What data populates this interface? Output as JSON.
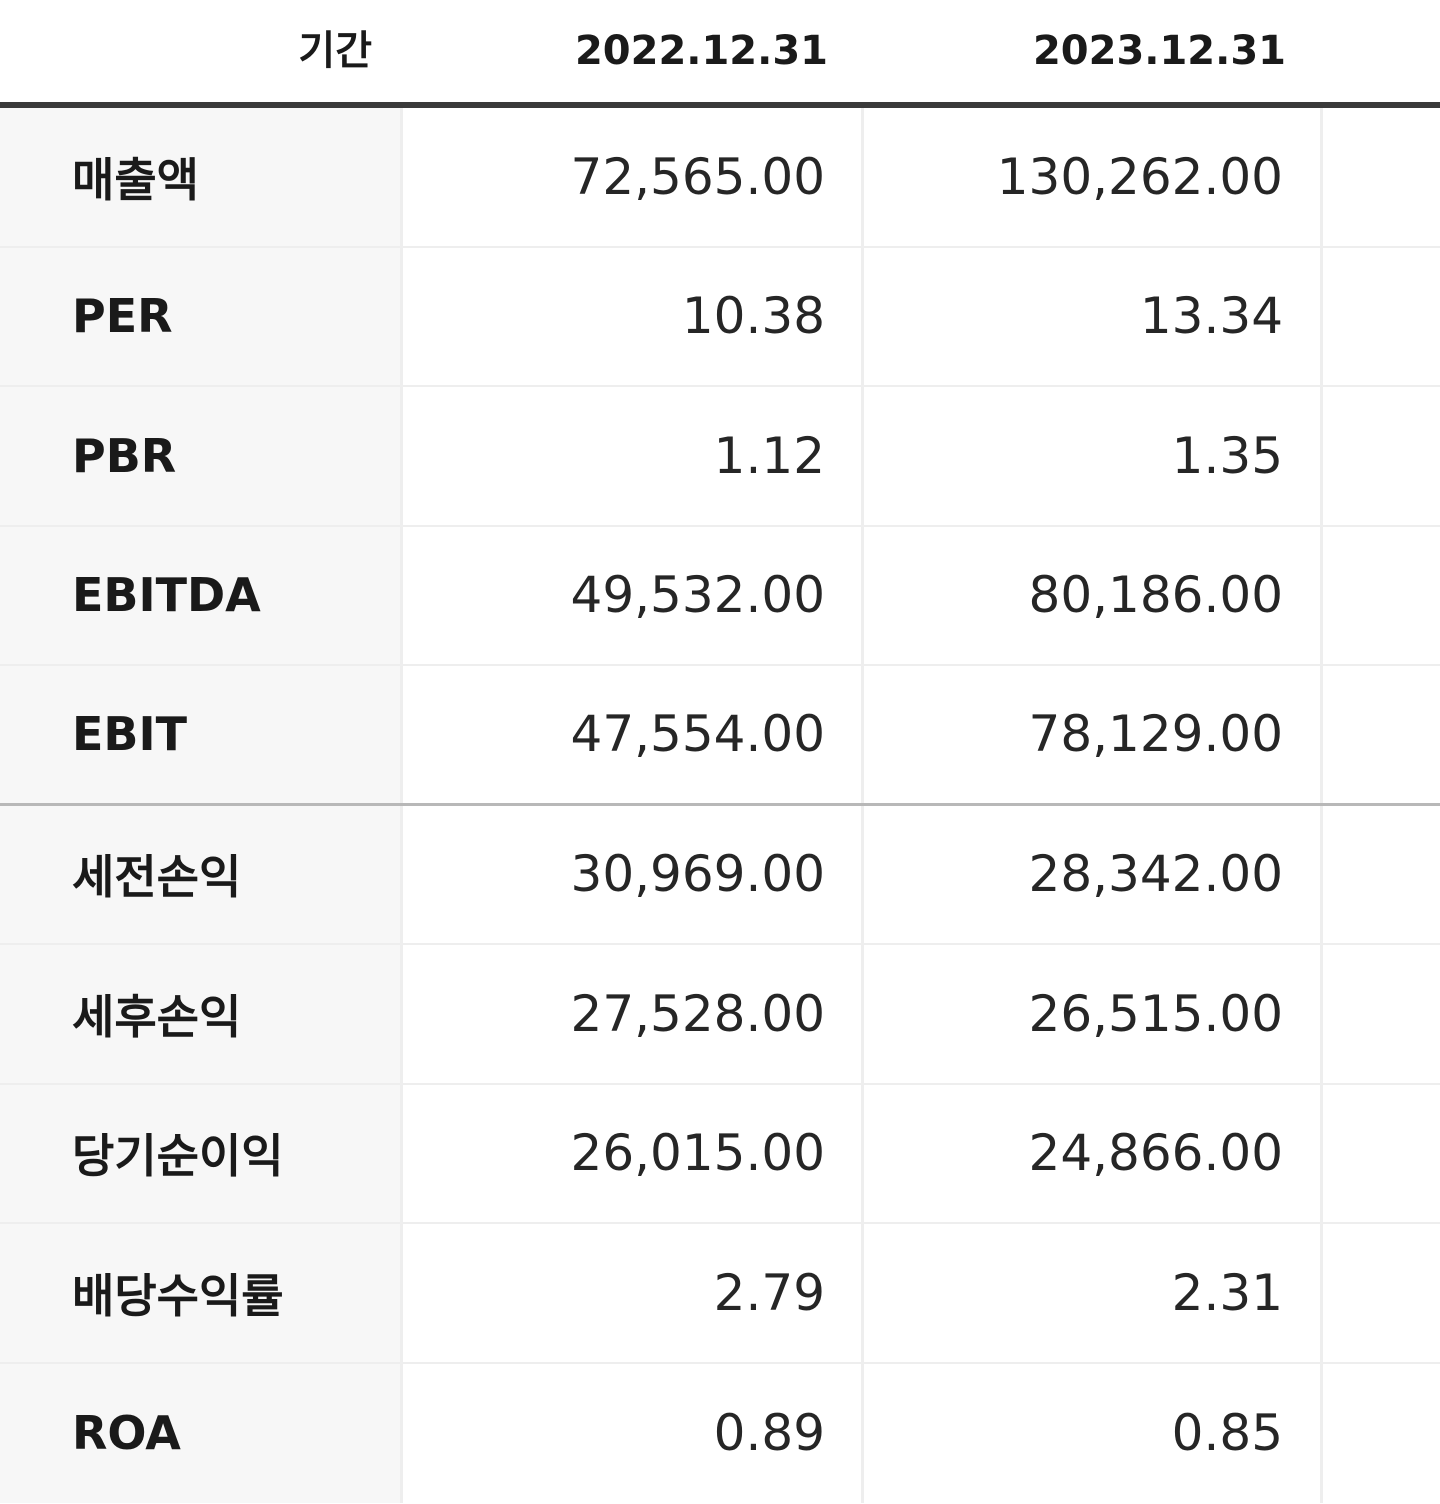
{
  "header": {
    "label": "기간",
    "periods": [
      "2022.12.31",
      "2023.12.31"
    ]
  },
  "rows": [
    {
      "label": "매출액",
      "values": [
        "72,565.00",
        "130,262.00"
      ]
    },
    {
      "label": "PER",
      "values": [
        "10.38",
        "13.34"
      ]
    },
    {
      "label": "PBR",
      "values": [
        "1.12",
        "1.35"
      ]
    },
    {
      "label": "EBITDA",
      "values": [
        "49,532.00",
        "80,186.00"
      ]
    },
    {
      "label": "EBIT",
      "values": [
        "47,554.00",
        "78,129.00"
      ]
    },
    {
      "label": "세전손익",
      "values": [
        "30,969.00",
        "28,342.00"
      ]
    },
    {
      "label": "세후손익",
      "values": [
        "27,528.00",
        "26,515.00"
      ]
    },
    {
      "label": "당기순이익",
      "values": [
        "26,015.00",
        "24,866.00"
      ]
    },
    {
      "label": "배당수익률",
      "values": [
        "2.79",
        "2.31"
      ]
    },
    {
      "label": "ROA",
      "values": [
        "0.89",
        "0.85"
      ]
    }
  ]
}
